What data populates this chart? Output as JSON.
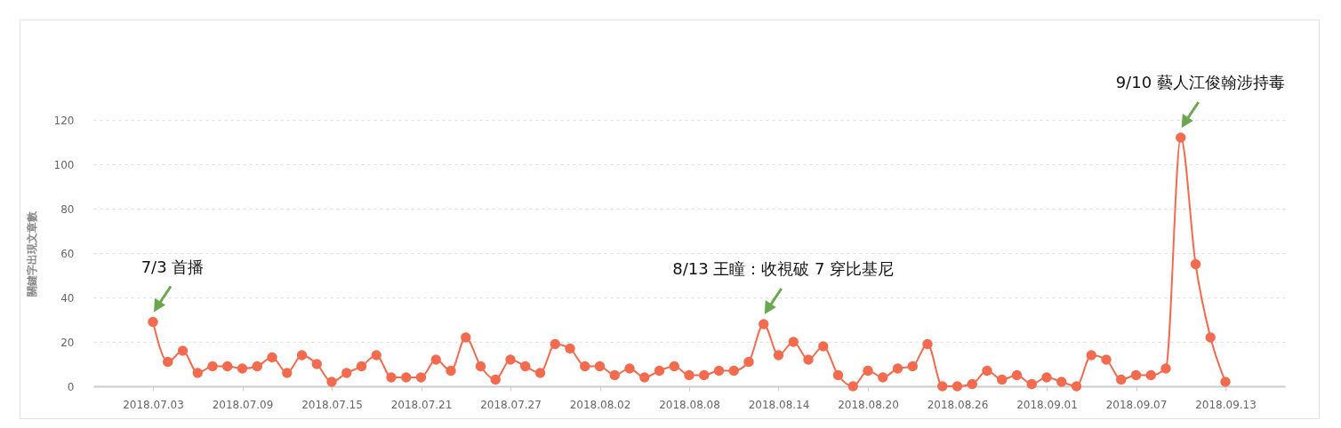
{
  "chart_data": {
    "type": "line",
    "ylabel": "關鍵字出現文章數",
    "x": [
      "2018-07-03",
      "2018-07-04",
      "2018-07-05",
      "2018-07-06",
      "2018-07-07",
      "2018-07-08",
      "2018-07-09",
      "2018-07-10",
      "2018-07-11",
      "2018-07-12",
      "2018-07-13",
      "2018-07-14",
      "2018-07-15",
      "2018-07-16",
      "2018-07-17",
      "2018-07-18",
      "2018-07-19",
      "2018-07-20",
      "2018-07-21",
      "2018-07-22",
      "2018-07-23",
      "2018-07-24",
      "2018-07-25",
      "2018-07-26",
      "2018-07-27",
      "2018-07-28",
      "2018-07-29",
      "2018-07-30",
      "2018-07-31",
      "2018-08-01",
      "2018-08-02",
      "2018-08-03",
      "2018-08-04",
      "2018-08-05",
      "2018-08-06",
      "2018-08-07",
      "2018-08-08",
      "2018-08-09",
      "2018-08-10",
      "2018-08-11",
      "2018-08-12",
      "2018-08-13",
      "2018-08-14",
      "2018-08-15",
      "2018-08-16",
      "2018-08-17",
      "2018-08-18",
      "2018-08-19",
      "2018-08-20",
      "2018-08-21",
      "2018-08-22",
      "2018-08-23",
      "2018-08-24",
      "2018-08-25",
      "2018-08-26",
      "2018-08-27",
      "2018-08-28",
      "2018-08-29",
      "2018-08-30",
      "2018-08-31",
      "2018-09-01",
      "2018-09-02",
      "2018-09-03",
      "2018-09-04",
      "2018-09-05",
      "2018-09-06",
      "2018-09-07",
      "2018-09-08",
      "2018-09-09",
      "2018-09-10",
      "2018-09-11",
      "2018-09-12",
      "2018-09-13"
    ],
    "series": [
      {
        "color": "#f26b4f",
        "values": [
          29,
          11,
          16,
          6,
          9,
          9,
          8,
          9,
          13,
          6,
          14,
          10,
          2,
          6,
          9,
          14,
          4,
          4,
          4,
          12,
          7,
          22,
          9,
          3,
          12,
          9,
          6,
          19,
          17,
          9,
          9,
          5,
          8,
          4,
          7,
          9,
          5,
          5,
          7,
          7,
          11,
          28,
          14,
          20,
          12,
          18,
          5,
          0,
          7,
          4,
          8,
          9,
          19,
          0,
          0,
          1,
          7,
          3,
          5,
          1,
          4,
          2,
          0,
          14,
          12,
          3,
          5,
          5,
          8,
          112,
          55,
          22,
          2
        ]
      }
    ],
    "xlim": [
      "2018-06-29",
      "2018-09-17"
    ],
    "xticks": [
      {
        "value": "2018-07-03",
        "label": "2018.07.03"
      },
      {
        "value": "2018-07-09",
        "label": "2018.07.09"
      },
      {
        "value": "2018-07-15",
        "label": "2018.07.15"
      },
      {
        "value": "2018-07-21",
        "label": "2018.07.21"
      },
      {
        "value": "2018-07-27",
        "label": "2018.07.27"
      },
      {
        "value": "2018-08-02",
        "label": "2018.08.02"
      },
      {
        "value": "2018-08-08",
        "label": "2018.08.08"
      },
      {
        "value": "2018-08-14",
        "label": "2018.08.14"
      },
      {
        "value": "2018-08-20",
        "label": "2018.08.20"
      },
      {
        "value": "2018-08-26",
        "label": "2018.08.26"
      },
      {
        "value": "2018-09-01",
        "label": "2018.09.01"
      },
      {
        "value": "2018-09-07",
        "label": "2018.09.07"
      },
      {
        "value": "2018-09-13",
        "label": "2018.09.13"
      }
    ],
    "ylim": [
      0,
      120
    ],
    "yticks": [
      0,
      20,
      40,
      60,
      80,
      100,
      120
    ],
    "grid": "y",
    "marker": "circle",
    "line_style": "solid",
    "annotations": [
      {
        "text": "7/3 首播",
        "x": "2018-07-03",
        "y": 29
      },
      {
        "text": "8/13  王瞳：收視破 7 穿比基尼",
        "x": "2018-08-13",
        "y": 28
      },
      {
        "text": "9/10 藝人江俊翰涉持毒",
        "x": "2018-09-10",
        "y": 112
      }
    ]
  }
}
